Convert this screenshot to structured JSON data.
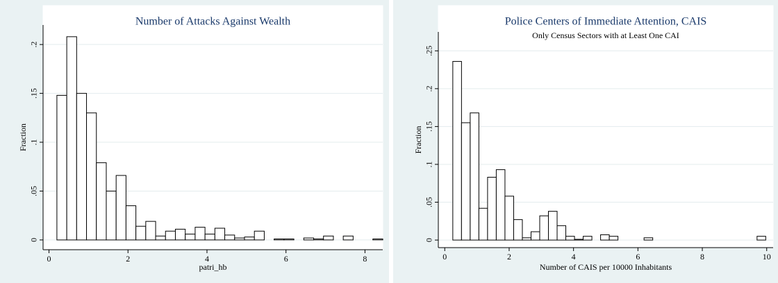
{
  "chart_data": [
    {
      "type": "histogram",
      "title": "Number of Attacks Against Wealth",
      "x_label": "patri_hb",
      "y_label": "Fraction",
      "bins": [
        0.2,
        0.45,
        0.7,
        0.95,
        1.2,
        1.45,
        1.7,
        1.95,
        2.2,
        2.45,
        2.7,
        2.95,
        3.2,
        3.45,
        3.7,
        3.95,
        4.2,
        4.45,
        4.7,
        4.95,
        5.2,
        5.45,
        5.7,
        5.95,
        6.2,
        6.45,
        6.7,
        6.95,
        7.2,
        7.45,
        7.7,
        7.95,
        8.2,
        8.45
      ],
      "values": [
        0.148,
        0.208,
        0.15,
        0.13,
        0.079,
        0.05,
        0.066,
        0.035,
        0.014,
        0.019,
        0.004,
        0.009,
        0.011,
        0.006,
        0.013,
        0.006,
        0.012,
        0.005,
        0.002,
        0.003,
        0.009,
        0,
        0.001,
        0.001,
        0,
        0.002,
        0.001,
        0.004,
        0,
        0.004,
        0,
        0,
        0.001
      ],
      "color": "#ffffff",
      "edge_color": "#000000",
      "xlim": [
        -0.15,
        8.45
      ],
      "ylim": [
        -0.01,
        0.22
      ],
      "xticks": [
        0,
        2,
        4,
        6,
        8
      ],
      "yticks": [
        0,
        {
          "value": 0.05,
          "label": ".05"
        },
        {
          "value": 0.1,
          "label": ".1"
        },
        {
          "value": 0.15,
          "label": ".15"
        },
        {
          "value": 0.2,
          "label": ".2"
        }
      ],
      "grid": true
    },
    {
      "type": "histogram",
      "title": "Police Centers of Immediate Attention, CAIS",
      "subtitle": "Only Census Sectors with at Least One CAI",
      "x_label": "Number of CAIS per 10000 Inhabitants",
      "y_label": "Fraction",
      "bins": [
        0.25,
        0.52,
        0.79,
        1.06,
        1.33,
        1.6,
        1.87,
        2.14,
        2.41,
        2.68,
        2.95,
        3.22,
        3.49,
        3.76,
        4.03,
        4.3,
        4.57,
        4.84,
        5.11,
        5.38,
        5.65,
        5.92,
        6.19,
        6.46,
        6.73,
        7,
        7.27,
        7.54,
        7.81,
        8.08,
        8.35,
        8.62,
        8.89,
        9.16,
        9.43,
        9.7,
        9.97
      ],
      "values": [
        0.236,
        0.155,
        0.168,
        0.042,
        0.083,
        0.093,
        0.058,
        0.027,
        0.003,
        0.011,
        0.032,
        0.038,
        0.019,
        0.005,
        0.001,
        0.005,
        0,
        0.007,
        0.005,
        0,
        0,
        0,
        0.003,
        0,
        0,
        0,
        0,
        0,
        0,
        0,
        0,
        0,
        0,
        0,
        0,
        0.005
      ],
      "color": "#ffffff",
      "edge_color": "#000000",
      "xlim": [
        -0.2,
        10.2
      ],
      "ylim": [
        -0.01,
        0.275
      ],
      "xticks": [
        0,
        2,
        4,
        6,
        8,
        10
      ],
      "yticks": [
        0,
        {
          "value": 0.05,
          "label": ".05"
        },
        {
          "value": 0.1,
          "label": ".1"
        },
        {
          "value": 0.15,
          "label": ".15"
        },
        {
          "value": 0.2,
          "label": ".2"
        },
        {
          "value": 0.25,
          "label": ".25"
        }
      ],
      "grid": true
    }
  ]
}
